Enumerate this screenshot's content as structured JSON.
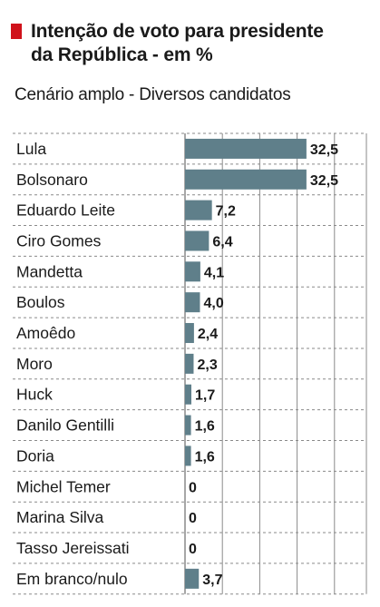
{
  "header": {
    "title_line1": "Intenção de voto para presidente",
    "title_line2": "da República - em %",
    "subtitle": "Cenário amplo - Diversos candidatos"
  },
  "colors": {
    "accent": "#d0121b",
    "bar": "#5f7f8a",
    "grid": "#8a8a8a"
  },
  "chart_data": {
    "type": "bar",
    "orientation": "horizontal",
    "title": "Intenção de voto para presidente da República - em %",
    "subtitle": "Cenário amplo - Diversos candidatos",
    "categories": [
      "Lula",
      "Bolsonaro",
      "Eduardo Leite",
      "Ciro Gomes",
      "Mandetta",
      "Boulos",
      "Amoêdo",
      "Moro",
      "Huck",
      "Danilo Gentilli",
      "Doria",
      "Michel Temer",
      "Marina Silva",
      "Tasso Jereissati",
      "Em branco/nulo"
    ],
    "values": [
      32.5,
      32.5,
      7.2,
      6.4,
      4.1,
      4.0,
      2.4,
      2.3,
      1.7,
      1.6,
      1.6,
      0,
      0,
      0,
      3.7
    ],
    "value_labels": [
      "32,5",
      "32,5",
      "7,2",
      "6,4",
      "4,1",
      "4,0",
      "2,4",
      "2,3",
      "1,7",
      "1,6",
      "1,6",
      "0",
      "0",
      "0",
      "3,7"
    ],
    "xlim": [
      0,
      50
    ],
    "grid": true,
    "legend": "none"
  }
}
